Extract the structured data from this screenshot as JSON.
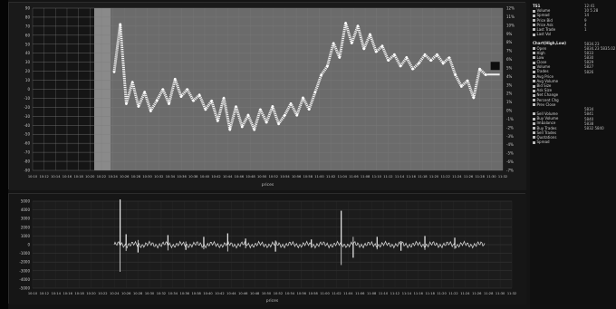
{
  "main_chart": {
    "ylabels_left": [
      "90",
      "80",
      "70",
      "60",
      "50",
      "40",
      "30",
      "20",
      "10",
      "0",
      "-10",
      "-20",
      "-30",
      "-40",
      "-50",
      "-60",
      "-70",
      "-80",
      "-90"
    ],
    "ylabels_right": [
      "12%",
      "11%",
      "10%",
      "9%",
      "8%",
      "7%",
      "6%",
      "5%",
      "4%",
      "3%",
      "2%",
      "1%",
      "0%",
      "-1%",
      "-2%",
      "-3%",
      "-4%",
      "-5%",
      "-6%",
      "-7%"
    ],
    "xlabels": [
      "10:10",
      "10:12",
      "10:14",
      "10:16",
      "10:18",
      "10:20",
      "10:22",
      "10:24",
      "10:26",
      "10:28",
      "10:30",
      "10:32",
      "10:34",
      "10:36",
      "10:38",
      "10:40",
      "10:42",
      "10:44",
      "10:46",
      "10:48",
      "10:50",
      "10:52",
      "10:54",
      "10:56",
      "10:58",
      "11:00",
      "11:02",
      "11:04",
      "11:06",
      "11:08",
      "11:10",
      "11:12",
      "11:14",
      "11:16",
      "11:18",
      "11:20",
      "11:22",
      "11:24",
      "11:26",
      "11:28",
      "11:30",
      "11:32"
    ],
    "xtitle": "prices",
    "series": [
      {
        "t": 0,
        "v": 62
      },
      {
        "t": 1,
        "v": 95
      },
      {
        "t": 2,
        "v": 40
      },
      {
        "t": 3,
        "v": 55
      },
      {
        "t": 4,
        "v": 38
      },
      {
        "t": 5,
        "v": 48
      },
      {
        "t": 6,
        "v": 35
      },
      {
        "t": 7,
        "v": 42
      },
      {
        "t": 8,
        "v": 50
      },
      {
        "t": 9,
        "v": 40
      },
      {
        "t": 10,
        "v": 57
      },
      {
        "t": 11,
        "v": 45
      },
      {
        "t": 12,
        "v": 50
      },
      {
        "t": 13,
        "v": 42
      },
      {
        "t": 14,
        "v": 46
      },
      {
        "t": 15,
        "v": 36
      },
      {
        "t": 16,
        "v": 42
      },
      {
        "t": 17,
        "v": 28
      },
      {
        "t": 18,
        "v": 44
      },
      {
        "t": 19,
        "v": 22
      },
      {
        "t": 20,
        "v": 38
      },
      {
        "t": 21,
        "v": 24
      },
      {
        "t": 22,
        "v": 32
      },
      {
        "t": 23,
        "v": 22
      },
      {
        "t": 24,
        "v": 36
      },
      {
        "t": 25,
        "v": 27
      },
      {
        "t": 26,
        "v": 38
      },
      {
        "t": 27,
        "v": 26
      },
      {
        "t": 28,
        "v": 32
      },
      {
        "t": 29,
        "v": 40
      },
      {
        "t": 30,
        "v": 32
      },
      {
        "t": 31,
        "v": 44
      },
      {
        "t": 32,
        "v": 36
      },
      {
        "t": 33,
        "v": 48
      },
      {
        "t": 34,
        "v": 60
      },
      {
        "t": 35,
        "v": 66
      },
      {
        "t": 36,
        "v": 82
      },
      {
        "t": 37,
        "v": 72
      },
      {
        "t": 38,
        "v": 96
      },
      {
        "t": 39,
        "v": 82
      },
      {
        "t": 40,
        "v": 94
      },
      {
        "t": 41,
        "v": 78
      },
      {
        "t": 42,
        "v": 88
      },
      {
        "t": 43,
        "v": 76
      },
      {
        "t": 44,
        "v": 80
      },
      {
        "t": 45,
        "v": 70
      },
      {
        "t": 46,
        "v": 74
      },
      {
        "t": 47,
        "v": 66
      },
      {
        "t": 48,
        "v": 72
      },
      {
        "t": 49,
        "v": 64
      },
      {
        "t": 50,
        "v": 68
      },
      {
        "t": 51,
        "v": 74
      },
      {
        "t": 52,
        "v": 70
      },
      {
        "t": 53,
        "v": 74
      },
      {
        "t": 54,
        "v": 68
      },
      {
        "t": 55,
        "v": 72
      },
      {
        "t": 56,
        "v": 60
      },
      {
        "t": 57,
        "v": 52
      },
      {
        "t": 58,
        "v": 56
      },
      {
        "t": 59,
        "v": 44
      },
      {
        "t": 60,
        "v": 64
      },
      {
        "t": 61,
        "v": 60
      }
    ],
    "marker": {
      "t": 61.5,
      "v": 64
    }
  },
  "sub_chart": {
    "ylabels": [
      "5000",
      "4000",
      "3000",
      "2000",
      "1000",
      "0",
      "-1000",
      "-2000",
      "-3000",
      "-4000",
      "-5000"
    ],
    "xlabels": [
      "10:10",
      "10:12",
      "10:14",
      "10:16",
      "10:18",
      "10:20",
      "10:22",
      "10:24",
      "10:26",
      "10:28",
      "10:30",
      "10:32",
      "10:34",
      "10:36",
      "10:38",
      "10:40",
      "10:42",
      "10:44",
      "10:46",
      "10:48",
      "10:50",
      "10:52",
      "10:54",
      "10:56",
      "10:58",
      "11:00",
      "11:02",
      "11:04",
      "11:06",
      "11:08",
      "11:10",
      "11:12",
      "11:14",
      "11:16",
      "11:18",
      "11:20",
      "11:22",
      "11:24",
      "11:26",
      "11:28",
      "11:30",
      "11:32"
    ],
    "xtitle": "prices",
    "spikes": [
      {
        "t": 1,
        "v": 5200
      },
      {
        "t": 2,
        "v": 1200
      },
      {
        "t": 4,
        "v": -900
      },
      {
        "t": 9,
        "v": 1100
      },
      {
        "t": 12,
        "v": -600
      },
      {
        "t": 15,
        "v": 900
      },
      {
        "t": 19,
        "v": 1300
      },
      {
        "t": 22,
        "v": 700
      },
      {
        "t": 27,
        "v": -800
      },
      {
        "t": 33,
        "v": 600
      },
      {
        "t": 38,
        "v": 3900
      },
      {
        "t": 40,
        "v": -1500
      },
      {
        "t": 44,
        "v": 900
      },
      {
        "t": 48,
        "v": -700
      },
      {
        "t": 52,
        "v": 1000
      },
      {
        "t": 57,
        "v": 800
      }
    ]
  },
  "side_panel": {
    "left_rows": [
      {
        "text": "TS1",
        "head": true
      },
      {
        "text": "Volume"
      },
      {
        "text": "Spread"
      },
      {
        "text": "Price Bid"
      },
      {
        "text": "Price Ask"
      },
      {
        "text": "Last Trade"
      },
      {
        "text": "Last Vol"
      },
      {
        "text": "",
        "spacer": true
      },
      {
        "text": "Chart(High,Low)",
        "head": true
      },
      {
        "text": "Open"
      },
      {
        "text": "High"
      },
      {
        "text": "Low"
      },
      {
        "text": "Close"
      },
      {
        "text": "Volume"
      },
      {
        "text": "Trades"
      },
      {
        "text": "Avg Price"
      },
      {
        "text": "Avg Volume"
      },
      {
        "text": "Bid Size"
      },
      {
        "text": "Ask Size"
      },
      {
        "text": "Net Change"
      },
      {
        "text": "Percent Chg"
      },
      {
        "text": "Prev Close"
      },
      {
        "text": "",
        "spacer": true
      },
      {
        "text": "Sell Volume"
      },
      {
        "text": "Buy Volume"
      },
      {
        "text": "Imbalance"
      },
      {
        "text": "Buy Trades"
      },
      {
        "text": "Sell Trades"
      },
      {
        "text": "Quotations"
      },
      {
        "text": "Spread"
      }
    ],
    "right_rows": [
      "12:41",
      "10 5 28",
      "14",
      "9",
      "4",
      "1",
      "",
      "",
      "5834.23",
      "5834.23 5835.02",
      "5833",
      "5830",
      "5829",
      "5827",
      "5826",
      "",
      "",
      "",
      "",
      "",
      "",
      "",
      "5834",
      "5841",
      "5840",
      "5838",
      "5832 5840",
      "",
      "",
      ""
    ]
  }
}
